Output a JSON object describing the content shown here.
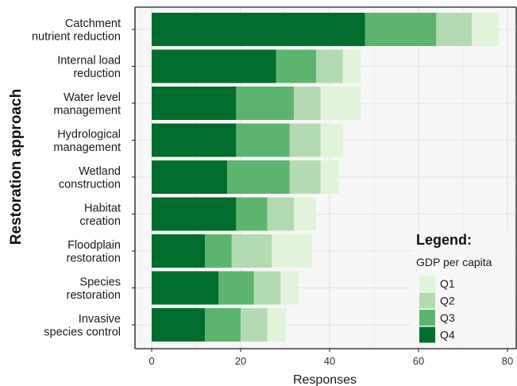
{
  "chart_data": {
    "type": "bar",
    "orientation": "horizontal",
    "stacked": true,
    "categories": [
      "Catchment nutrient reduction",
      "Internal load reduction",
      "Water level management",
      "Hydrological management",
      "Wetland construction",
      "Habitat creation",
      "Floodplain restoration",
      "Species restoration",
      "Invasive species control"
    ],
    "category_lines": [
      [
        "Catchment",
        "nutrient reduction"
      ],
      [
        "Internal load",
        "reduction"
      ],
      [
        "Water level",
        "management"
      ],
      [
        "Hydrological",
        "management"
      ],
      [
        "Wetland",
        "construction"
      ],
      [
        "Habitat",
        "creation"
      ],
      [
        "Floodplain",
        "restoration"
      ],
      [
        "Species",
        "restoration"
      ],
      [
        "Invasive",
        "species control"
      ]
    ],
    "series": [
      {
        "name": "Q4",
        "color": "#006d2c",
        "values": [
          48,
          28,
          19,
          19,
          17,
          19,
          12,
          15,
          12
        ]
      },
      {
        "name": "Q3",
        "color": "#5db46c",
        "values": [
          16,
          9,
          13,
          12,
          14,
          7,
          6,
          8,
          8
        ]
      },
      {
        "name": "Q2",
        "color": "#b3dbb1",
        "values": [
          8,
          6,
          6,
          7,
          7,
          6,
          9,
          6,
          6
        ]
      },
      {
        "name": "Q1",
        "color": "#e1f4d9",
        "values": [
          6,
          4,
          9,
          5,
          4,
          5,
          9,
          4,
          4
        ]
      }
    ],
    "legend_order": [
      "Q1",
      "Q2",
      "Q3",
      "Q4"
    ],
    "xlim": [
      0,
      80
    ],
    "xticks": [
      0,
      20,
      40,
      60,
      80
    ],
    "xlabel": "Responses",
    "ylabel": "Restoration approach",
    "legend_title": "Legend:",
    "legend_subtitle": "GDP per capita",
    "legend_placement": "bottom-right",
    "grid": true,
    "panel_background": "#f7f7f7",
    "grid_color": "#e3e3e3"
  }
}
